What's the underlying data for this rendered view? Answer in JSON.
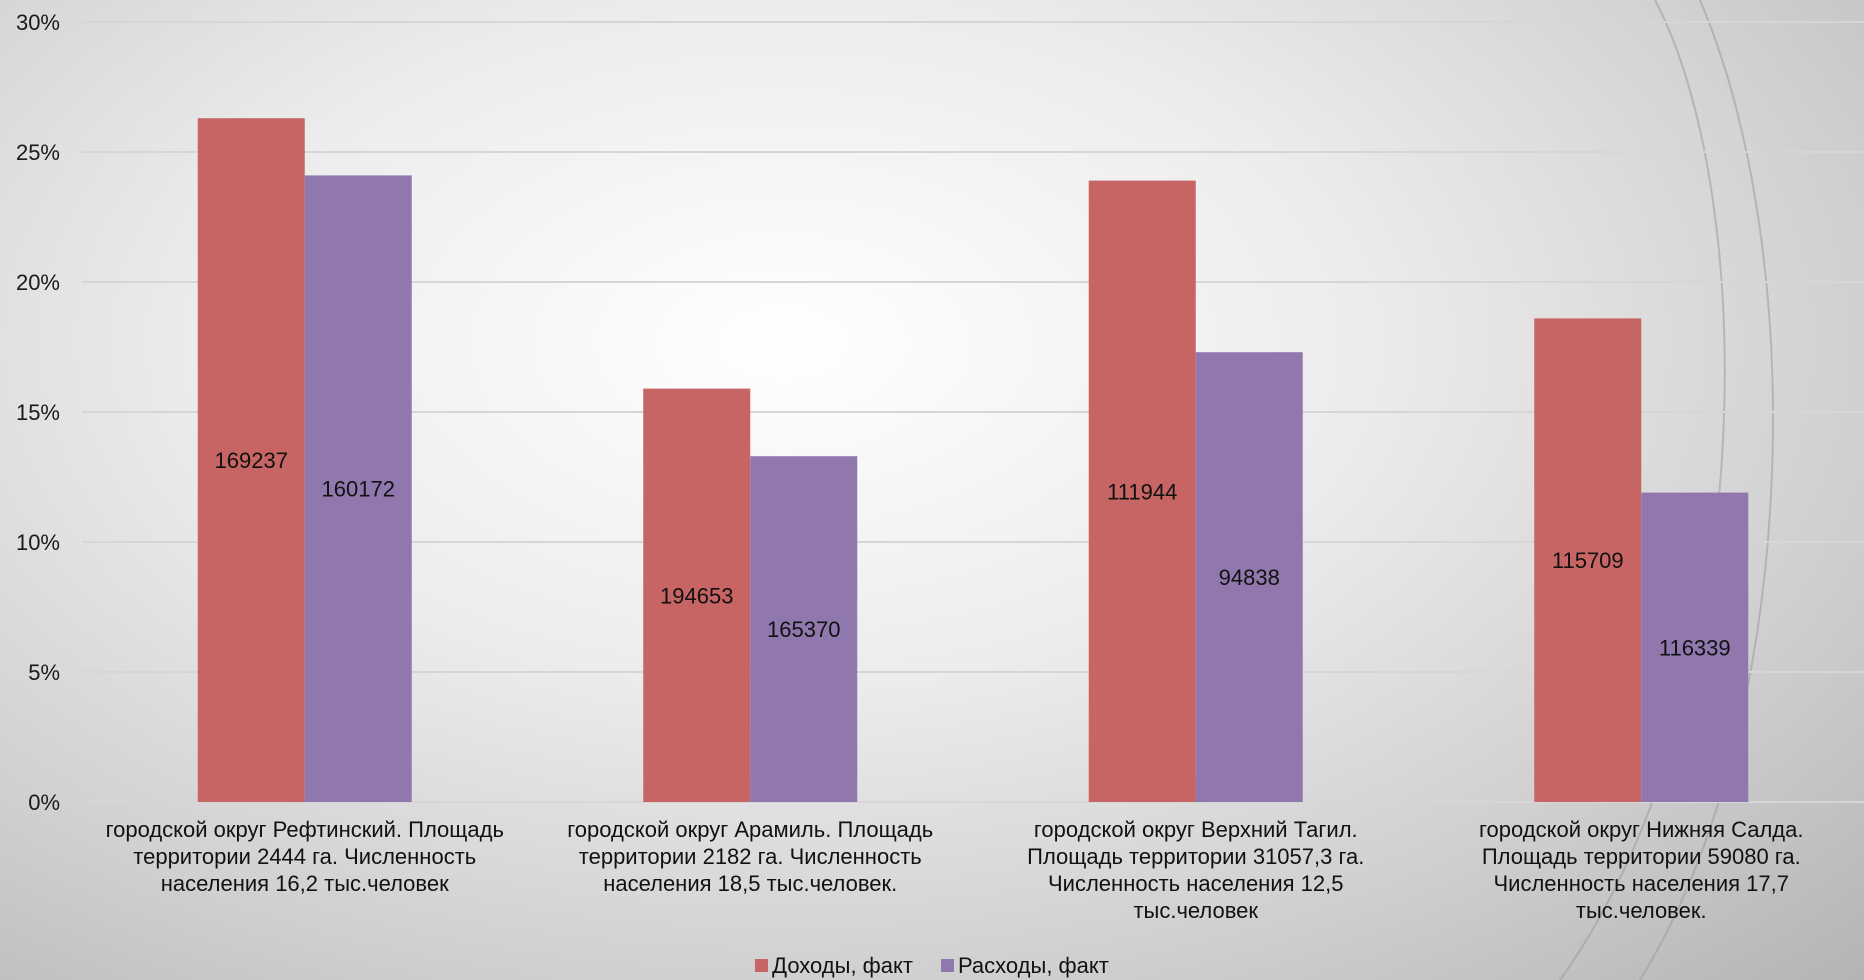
{
  "chart_data": {
    "type": "bar",
    "yticks": [
      "0%",
      "5%",
      "10%",
      "15%",
      "20%",
      "25%",
      "30%"
    ],
    "ylim": [
      0,
      30
    ],
    "grid": true,
    "legend_position": "bottom",
    "categories": [
      "городской округ Рефтинский. Площадь территории 2444 га. Численность населения 16,2 тыс.человек",
      "городской округ Арамиль. Площадь территории 2182 га. Численность населения 18,5 тыс.человек.",
      "городской округ Верхний Тагил. Площадь территории 31057,3 га. Численность населения 12,5 тыс.человек",
      "городской округ Нижняя Салда. Площадь территории 59080 га. Численность населения 17,7 тыс.человек."
    ],
    "series": [
      {
        "name": "Доходы, факт",
        "color": "#c66563",
        "values": [
          26.3,
          15.9,
          23.9,
          18.6
        ],
        "labels": [
          "169237",
          "194653",
          "111944",
          "115709"
        ]
      },
      {
        "name": "Расходы, факт",
        "color": "#9078ae",
        "values": [
          24.1,
          13.3,
          17.3,
          11.9
        ],
        "labels": [
          "160172",
          "165370",
          "94838",
          "116339"
        ]
      }
    ]
  }
}
